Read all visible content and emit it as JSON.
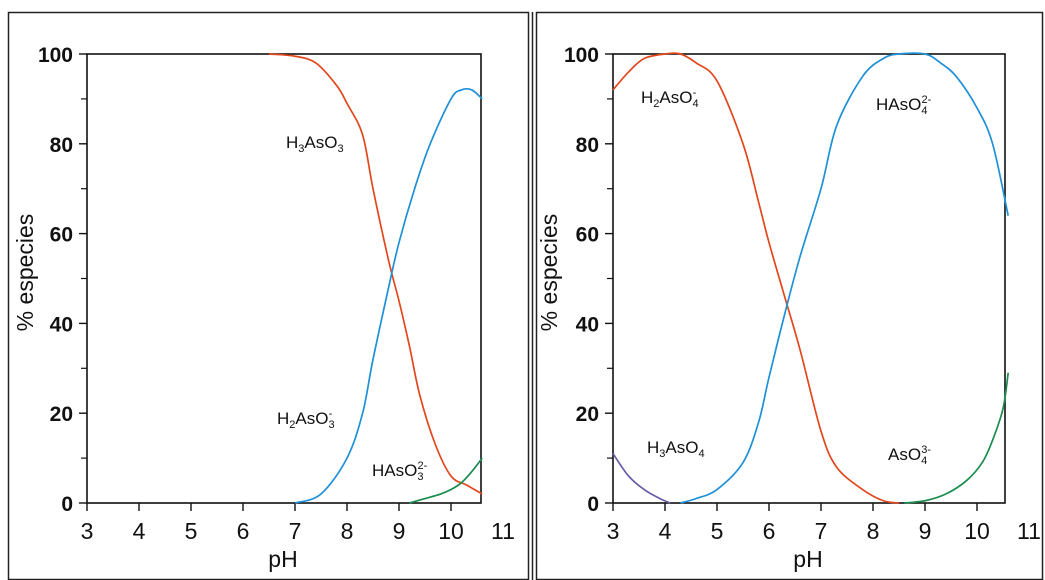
{
  "chart_data": [
    {
      "type": "line",
      "xlabel": "pH",
      "ylabel": "% especies",
      "xlim": [
        3,
        11
      ],
      "ylim": [
        0,
        100
      ],
      "x_ticks": [
        "3",
        "4",
        "5",
        "6",
        "7",
        "8",
        "9",
        "10",
        "11"
      ],
      "y_ticks": [
        "0",
        "20",
        "40",
        "60",
        "80",
        "100"
      ],
      "grid": false,
      "series": [
        {
          "name": "H3AsO3",
          "color": "#e2471c",
          "x": [
            6.5,
            7.0,
            7.4,
            7.8,
            8.0,
            8.3,
            8.5,
            8.8,
            9.0,
            9.2,
            9.4,
            9.7,
            10.0,
            10.3,
            10.6
          ],
          "y": [
            100,
            99.5,
            98,
            93,
            89,
            82,
            70,
            54,
            45,
            35,
            24,
            13,
            6,
            4,
            2
          ]
        },
        {
          "name": "H2AsO3-",
          "color": "#1e90d8",
          "x": [
            7.0,
            7.5,
            8.0,
            8.3,
            8.5,
            8.8,
            9.0,
            9.3,
            9.6,
            10.0,
            10.2,
            10.4,
            10.6
          ],
          "y": [
            0,
            2,
            10,
            20,
            32,
            48,
            58,
            70,
            80,
            90,
            92,
            92,
            90
          ]
        },
        {
          "name": "HAsO3^2-",
          "color": "#1a8c4e",
          "x": [
            9.2,
            9.5,
            9.8,
            10.0,
            10.2,
            10.4,
            10.6
          ],
          "y": [
            0,
            1,
            2,
            3,
            4.5,
            7,
            10
          ]
        }
      ],
      "annotations": [
        {
          "main": "H",
          "sub1": "3",
          "mid": "AsO",
          "sub2": "3",
          "sup": ""
        },
        {
          "main": "H",
          "sub1": "2",
          "mid": "AsO",
          "sub2": "3",
          "sup": "-"
        },
        {
          "main": "HAsO",
          "sub1": "3",
          "mid": "",
          "sub2": "",
          "sup": "2-"
        }
      ]
    },
    {
      "type": "line",
      "xlabel": "pH",
      "ylabel": "% especies",
      "xlim": [
        3,
        11
      ],
      "ylim": [
        0,
        100
      ],
      "x_ticks": [
        "3",
        "4",
        "5",
        "6",
        "7",
        "8",
        "9",
        "10",
        "11"
      ],
      "y_ticks": [
        "0",
        "20",
        "40",
        "60",
        "80",
        "100"
      ],
      "grid": false,
      "series": [
        {
          "name": "H3AsO4",
          "color": "#6a5aa8",
          "x": [
            3.0,
            3.3,
            3.6,
            3.9,
            4.1
          ],
          "y": [
            11,
            6,
            3,
            1,
            0
          ]
        },
        {
          "name": "H2AsO4-",
          "color": "#e2471c",
          "x": [
            3.0,
            3.3,
            3.6,
            4.0,
            4.3,
            4.6,
            5.0,
            5.5,
            5.8,
            6.0,
            6.3,
            6.6,
            7.0,
            7.3,
            7.8,
            8.2,
            8.5
          ],
          "y": [
            92,
            96,
            99,
            100,
            100,
            98,
            94,
            80,
            67,
            58,
            46,
            34,
            16,
            8,
            3,
            0.5,
            0
          ]
        },
        {
          "name": "HAsO4^2-",
          "color": "#1e90d8",
          "x": [
            4.3,
            4.6,
            5.0,
            5.5,
            5.8,
            6.0,
            6.3,
            6.6,
            7.0,
            7.3,
            7.8,
            8.2,
            8.5,
            9.0,
            9.3,
            9.6,
            10.0,
            10.3,
            10.6
          ],
          "y": [
            0,
            1,
            3,
            9,
            18,
            28,
            42,
            55,
            70,
            84,
            95,
            99,
            100,
            100,
            98,
            95,
            88,
            80,
            64
          ]
        },
        {
          "name": "AsO4^3-",
          "color": "#1a8c4e",
          "x": [
            8.6,
            9.0,
            9.4,
            9.8,
            10.1,
            10.3,
            10.5,
            10.6
          ],
          "y": [
            0,
            0.5,
            2,
            5,
            9,
            14,
            21,
            29
          ]
        }
      ],
      "annotations": [
        {
          "main": "H",
          "sub1": "2",
          "mid": "AsO",
          "sub2": "4",
          "sup": "-"
        },
        {
          "main": "HAsO",
          "sub1": "4",
          "mid": "",
          "sub2": "",
          "sup": "2-"
        },
        {
          "main": "H",
          "sub1": "3",
          "mid": "AsO",
          "sub2": "4",
          "sup": ""
        },
        {
          "main": "AsO",
          "sub1": "4",
          "mid": "",
          "sub2": "",
          "sup": "3-"
        }
      ]
    }
  ]
}
